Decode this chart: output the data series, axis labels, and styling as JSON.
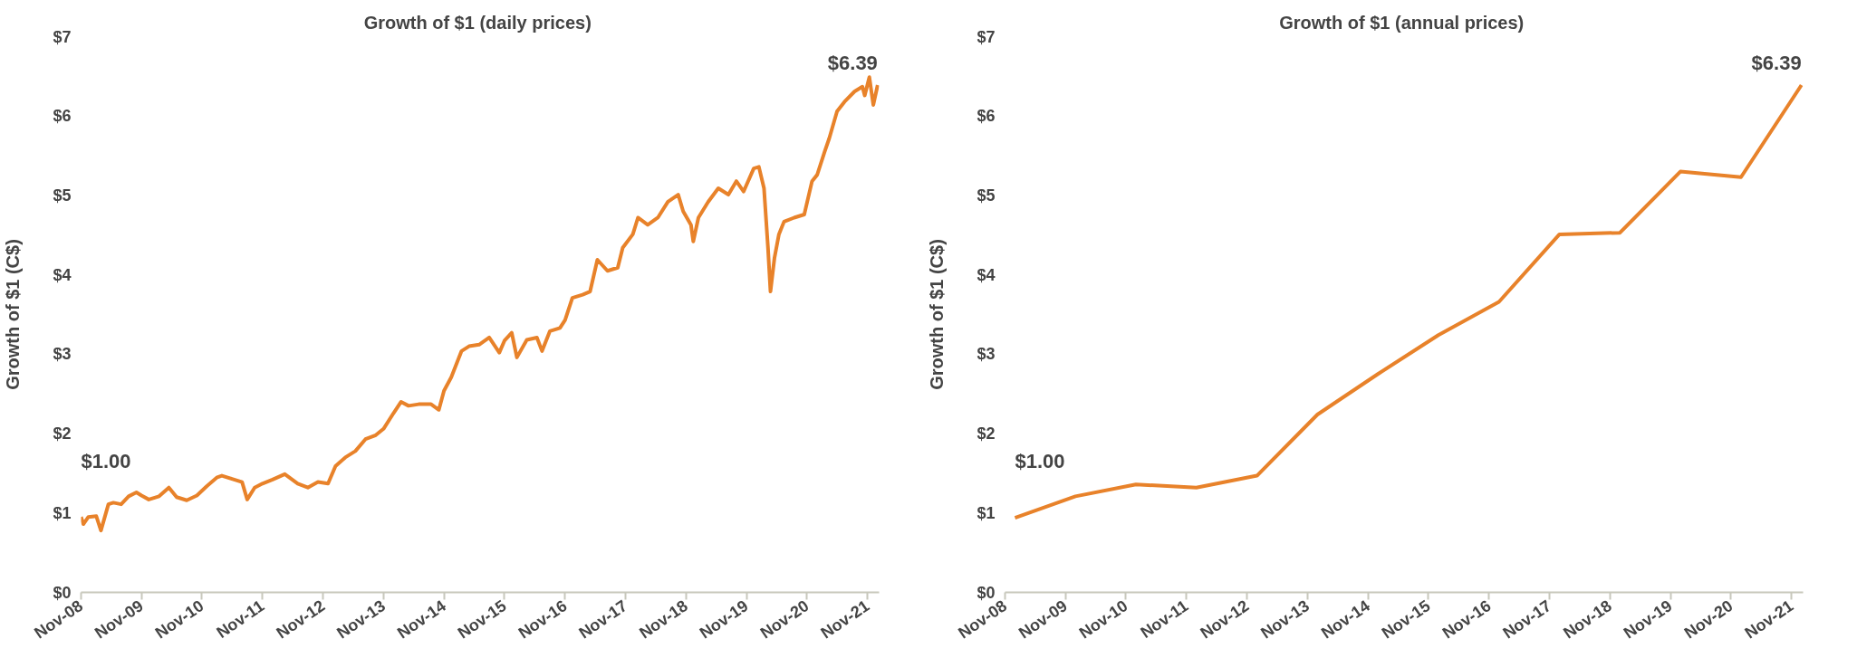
{
  "chart_data": [
    {
      "type": "line",
      "title": "Growth of $1  (daily prices)",
      "ylabel": "Growth of $1 (C$)",
      "x": [
        "2008-11-01",
        "2008-11-15",
        "2008-12-15",
        "2009-02-01",
        "2009-03-01",
        "2009-04-15",
        "2009-05-15",
        "2009-07-01",
        "2009-08-15",
        "2009-10-01",
        "2009-11-01",
        "2009-12-15",
        "2010-02-15",
        "2010-04-15",
        "2010-06-01",
        "2010-08-01",
        "2010-10-01",
        "2010-12-01",
        "2011-02-01",
        "2011-03-01",
        "2011-05-01",
        "2011-07-01",
        "2011-08-01",
        "2011-09-15",
        "2011-11-01",
        "2012-01-01",
        "2012-03-15",
        "2012-06-01",
        "2012-08-01",
        "2012-10-01",
        "2012-12-01",
        "2013-01-15",
        "2013-03-15",
        "2013-05-15",
        "2013-07-15",
        "2013-09-15",
        "2013-11-01",
        "2014-01-01",
        "2014-02-15",
        "2014-04-01",
        "2014-06-01",
        "2014-08-15",
        "2014-10-01",
        "2014-11-01",
        "2014-12-15",
        "2015-02-15",
        "2015-04-01",
        "2015-06-01",
        "2015-08-01",
        "2015-10-01",
        "2015-11-01",
        "2015-12-15",
        "2016-01-15",
        "2016-03-15",
        "2016-05-15",
        "2016-06-15",
        "2016-08-01",
        "2016-10-01",
        "2016-11-01",
        "2016-12-15",
        "2017-02-15",
        "2017-04-01",
        "2017-05-15",
        "2017-07-15",
        "2017-09-15",
        "2017-10-15",
        "2017-12-15",
        "2018-01-15",
        "2018-03-15",
        "2018-05-15",
        "2018-07-15",
        "2018-09-15",
        "2018-10-15",
        "2018-12-01",
        "2018-12-15",
        "2019-01-15",
        "2019-03-15",
        "2019-05-15",
        "2019-07-15",
        "2019-09-01",
        "2019-10-15",
        "2019-12-15",
        "2020-01-15",
        "2020-02-15",
        "2020-03-10",
        "2020-03-25",
        "2020-04-18",
        "2020-05-15",
        "2020-06-15",
        "2020-08-15",
        "2020-10-15",
        "2020-12-01",
        "2021-01-01",
        "2021-02-15",
        "2021-03-15",
        "2021-05-01",
        "2021-06-15",
        "2021-08-15",
        "2021-10-01",
        "2021-10-15",
        "2021-11-12",
        "2021-12-06",
        "2022-01-01"
      ],
      "series": [
        {
          "color": "#e8822a",
          "values": [
            0.95,
            0.86,
            0.95,
            0.96,
            0.78,
            1.11,
            1.13,
            1.11,
            1.21,
            1.26,
            1.22,
            1.17,
            1.21,
            1.32,
            1.2,
            1.16,
            1.22,
            1.34,
            1.45,
            1.47,
            1.43,
            1.39,
            1.17,
            1.32,
            1.37,
            1.42,
            1.49,
            1.37,
            1.32,
            1.39,
            1.37,
            1.59,
            1.7,
            1.78,
            1.93,
            1.98,
            2.06,
            2.26,
            2.4,
            2.35,
            2.37,
            2.37,
            2.3,
            2.54,
            2.71,
            3.04,
            3.1,
            3.12,
            3.21,
            3.02,
            3.17,
            3.27,
            2.96,
            3.18,
            3.21,
            3.04,
            3.29,
            3.33,
            3.43,
            3.71,
            3.75,
            3.79,
            4.19,
            4.05,
            4.09,
            4.34,
            4.51,
            4.72,
            4.63,
            4.72,
            4.92,
            5.01,
            4.8,
            4.63,
            4.42,
            4.72,
            4.92,
            5.09,
            5.01,
            5.18,
            5.05,
            5.34,
            5.36,
            5.09,
            4.34,
            3.79,
            4.21,
            4.51,
            4.67,
            4.72,
            4.76,
            5.18,
            5.26,
            5.55,
            5.72,
            6.06,
            6.18,
            6.31,
            6.37,
            6.26,
            6.49,
            6.14,
            6.39
          ]
        }
      ],
      "xlim": [
        "2008-11-01",
        "2022-01-10"
      ],
      "ylim": [
        0,
        7
      ],
      "xticks": [
        {
          "value": "2008-11-01",
          "label": "Nov-08"
        },
        {
          "value": "2009-11-01",
          "label": "Nov-09"
        },
        {
          "value": "2010-11-01",
          "label": "Nov-10"
        },
        {
          "value": "2011-11-01",
          "label": "Nov-11"
        },
        {
          "value": "2012-11-01",
          "label": "Nov-12"
        },
        {
          "value": "2013-11-01",
          "label": "Nov-13"
        },
        {
          "value": "2014-11-01",
          "label": "Nov-14"
        },
        {
          "value": "2015-11-01",
          "label": "Nov-15"
        },
        {
          "value": "2016-11-01",
          "label": "Nov-16"
        },
        {
          "value": "2017-11-01",
          "label": "Nov-17"
        },
        {
          "value": "2018-11-01",
          "label": "Nov-18"
        },
        {
          "value": "2019-11-01",
          "label": "Nov-19"
        },
        {
          "value": "2020-11-01",
          "label": "Nov-20"
        },
        {
          "value": "2021-11-01",
          "label": "Nov-21"
        }
      ],
      "yticks": [
        {
          "value": 0,
          "label": "$0"
        },
        {
          "value": 1,
          "label": "$1"
        },
        {
          "value": 2,
          "label": "$2"
        },
        {
          "value": 3,
          "label": "$3"
        },
        {
          "value": 4,
          "label": "$4"
        },
        {
          "value": 5,
          "label": "$5"
        },
        {
          "value": 6,
          "label": "$6"
        },
        {
          "value": 7,
          "label": "$7"
        }
      ],
      "annotations": [
        {
          "text": "$1.00",
          "x": "2008-11-01",
          "y": 1.0
        },
        {
          "text": "$6.39",
          "x": "2022-01-01",
          "y": 6.39
        }
      ]
    },
    {
      "type": "line",
      "title": "Growth of $1  (annual prices)",
      "ylabel": "Growth of $1 (C$)",
      "x": [
        "2008-12-31",
        "2009-12-31",
        "2010-12-31",
        "2011-12-31",
        "2012-12-31",
        "2013-12-31",
        "2014-12-31",
        "2015-12-31",
        "2016-12-31",
        "2017-12-31",
        "2018-12-31",
        "2019-12-31",
        "2020-12-31",
        "2021-12-31"
      ],
      "series": [
        {
          "color": "#e8822a",
          "values": [
            0.94,
            1.21,
            1.36,
            1.32,
            1.47,
            2.24,
            2.75,
            3.24,
            3.66,
            4.51,
            4.53,
            5.3,
            5.23,
            6.39
          ]
        }
      ],
      "xlim": [
        "2008-11-01",
        "2022-01-10"
      ],
      "ylim": [
        0,
        7
      ],
      "xticks": [
        {
          "value": "2008-11-01",
          "label": "Nov-08"
        },
        {
          "value": "2009-11-01",
          "label": "Nov-09"
        },
        {
          "value": "2010-11-01",
          "label": "Nov-10"
        },
        {
          "value": "2011-11-01",
          "label": "Nov-11"
        },
        {
          "value": "2012-11-01",
          "label": "Nov-12"
        },
        {
          "value": "2013-11-01",
          "label": "Nov-13"
        },
        {
          "value": "2014-11-01",
          "label": "Nov-14"
        },
        {
          "value": "2015-11-01",
          "label": "Nov-15"
        },
        {
          "value": "2016-11-01",
          "label": "Nov-16"
        },
        {
          "value": "2017-11-01",
          "label": "Nov-17"
        },
        {
          "value": "2018-11-01",
          "label": "Nov-18"
        },
        {
          "value": "2019-11-01",
          "label": "Nov-19"
        },
        {
          "value": "2020-11-01",
          "label": "Nov-20"
        },
        {
          "value": "2021-11-01",
          "label": "Nov-21"
        }
      ],
      "yticks": [
        {
          "value": 0,
          "label": "$0"
        },
        {
          "value": 1,
          "label": "$1"
        },
        {
          "value": 2,
          "label": "$2"
        },
        {
          "value": 3,
          "label": "$3"
        },
        {
          "value": 4,
          "label": "$4"
        },
        {
          "value": 5,
          "label": "$5"
        },
        {
          "value": 6,
          "label": "$6"
        },
        {
          "value": 7,
          "label": "$7"
        }
      ],
      "annotations": [
        {
          "text": "$1.00",
          "x": "2008-12-31",
          "y": 1.0
        },
        {
          "text": "$6.39",
          "x": "2021-12-31",
          "y": 6.39
        }
      ]
    }
  ]
}
